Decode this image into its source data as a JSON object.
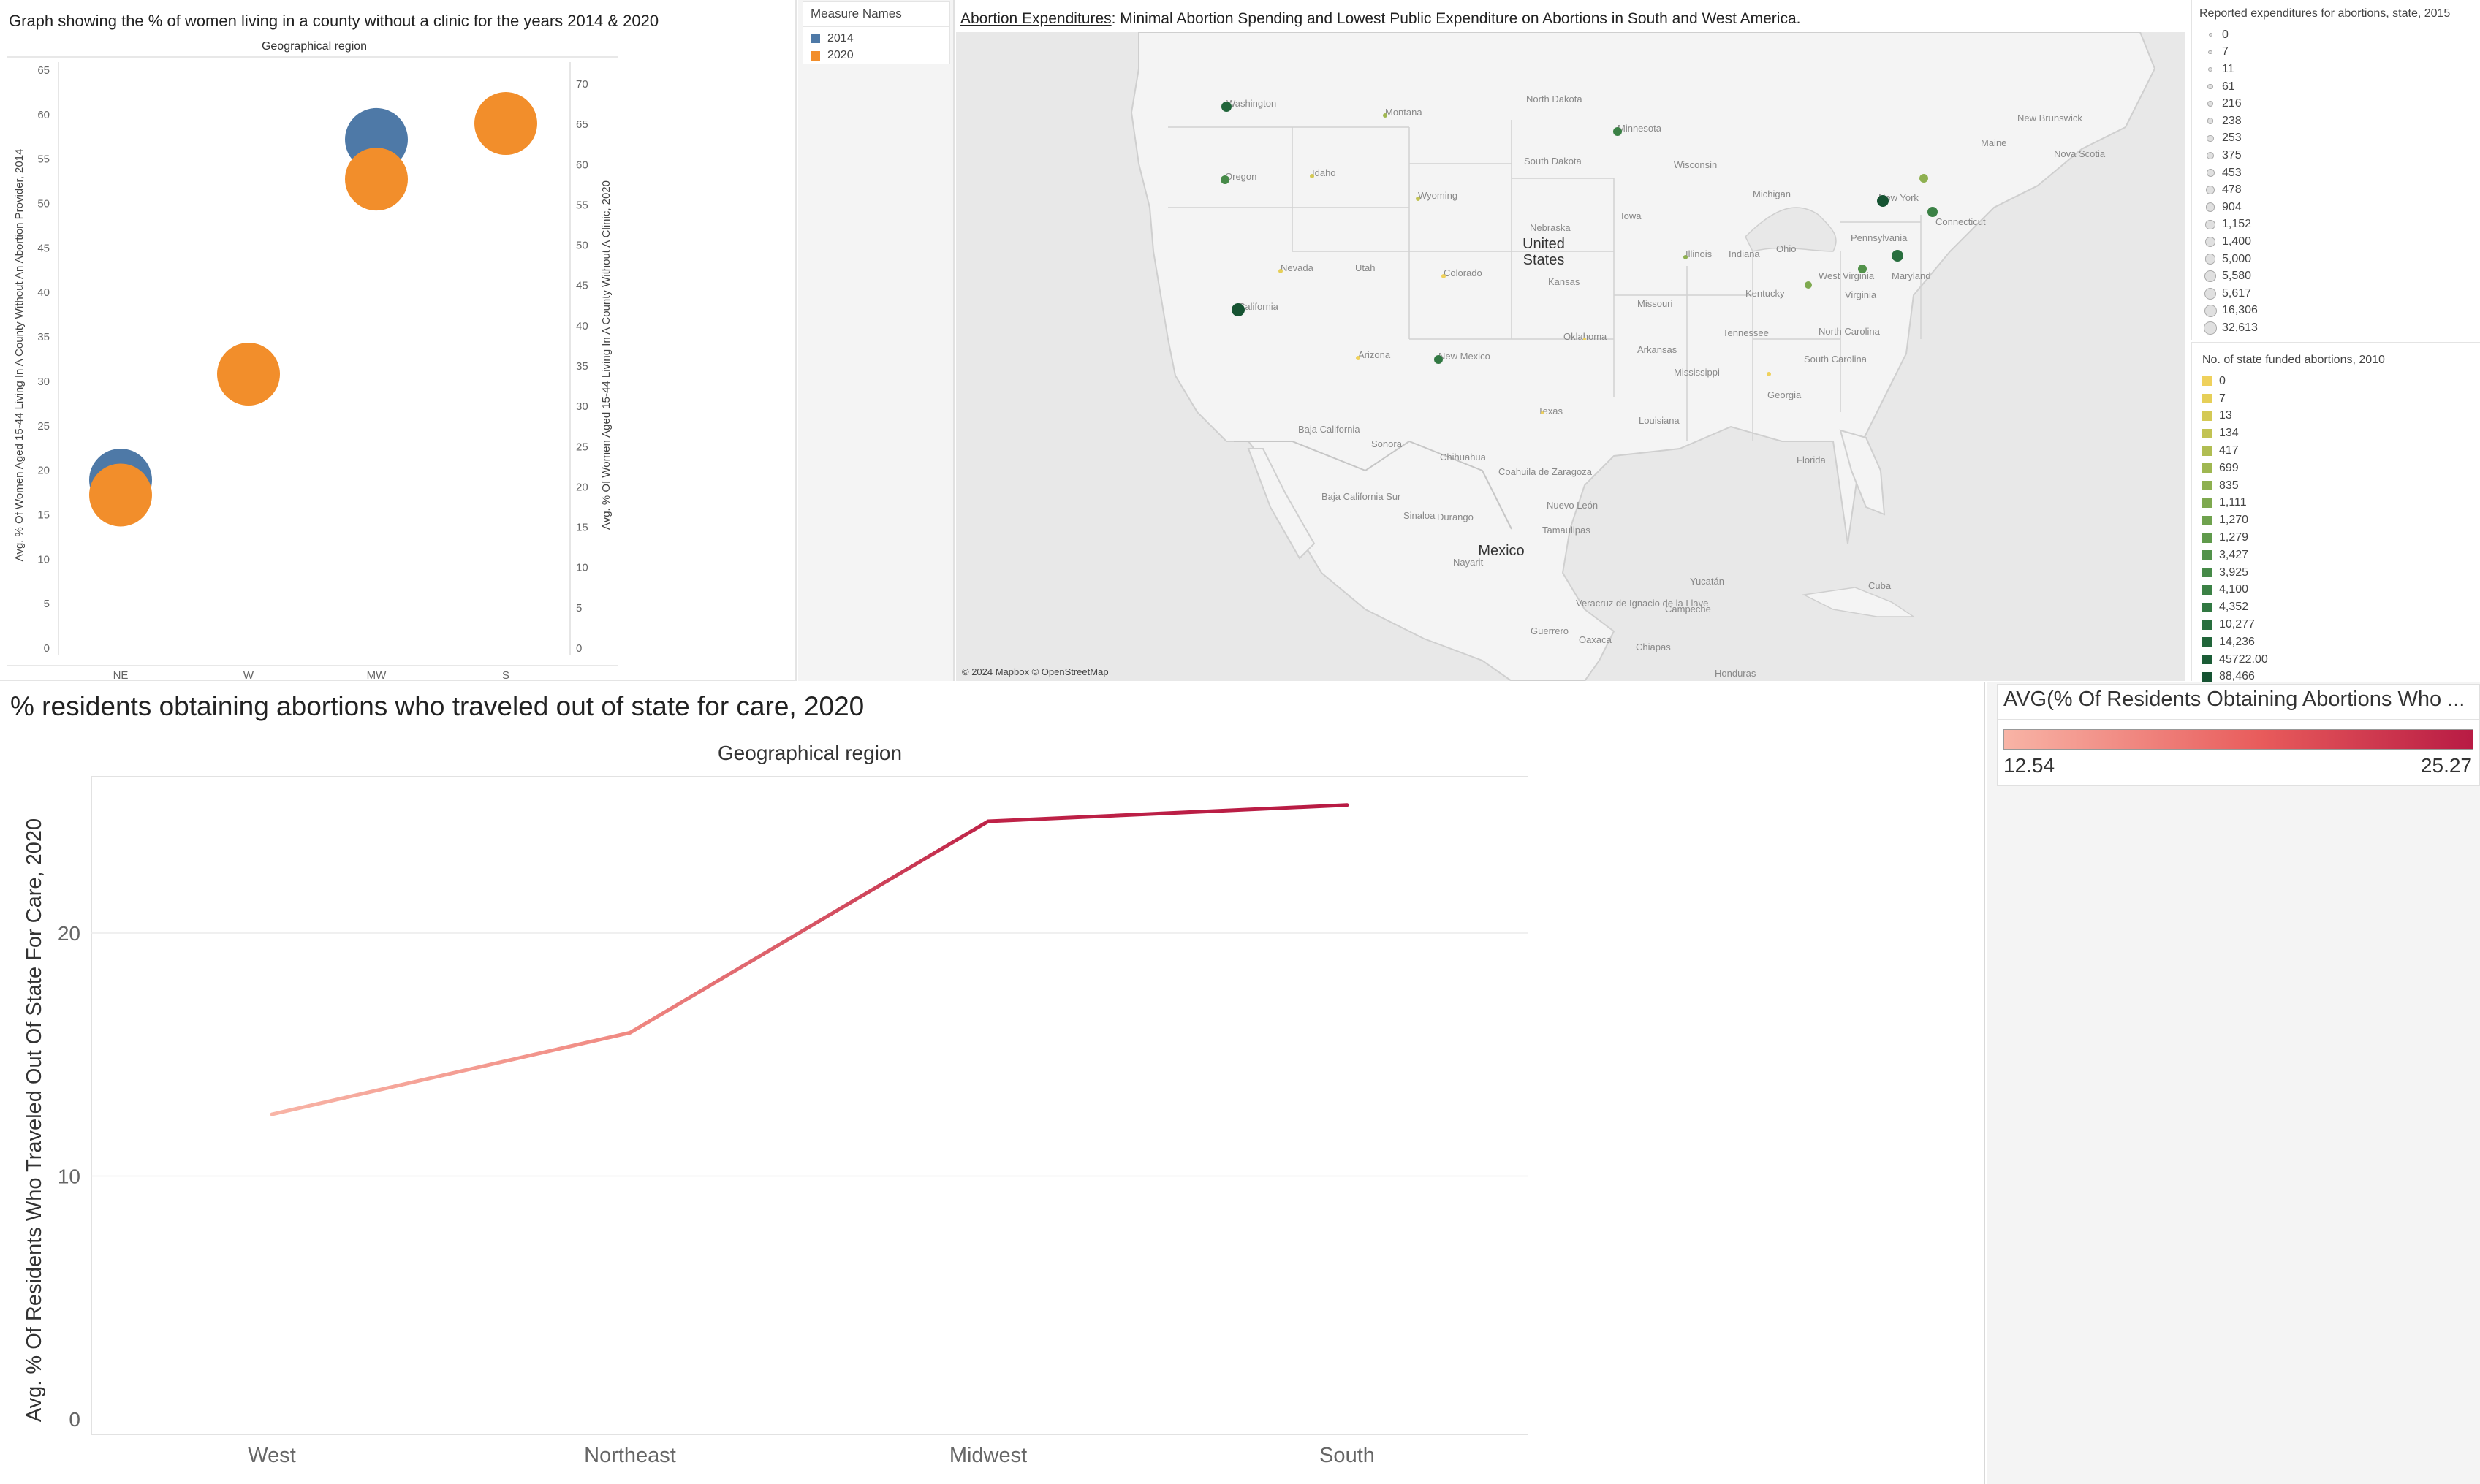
{
  "bubble_panel": {
    "title": "Graph showing the % of women living in a county without a clinic for the years 2014 & 2020",
    "header": "Geographical region",
    "y_left_label": "Avg. % Of Women Aged 15-44 Living In A County Without An Abortion Provider, 2014",
    "y_right_label": "Avg. % Of Women Aged 15-44 Living In A County Without A Clinic, 2020"
  },
  "measure_legend": {
    "title": "Measure Names",
    "items": [
      {
        "label": "2014",
        "color": "#4e79a7"
      },
      {
        "label": "2020",
        "color": "#f28e2b"
      }
    ]
  },
  "map_panel": {
    "title_link": "Abortion Expenditures",
    "title_rest": ": Minimal Abortion Spending and Lowest Public Expenditure on Abortions in South and West America.",
    "attribution": "© 2024 Mapbox © OpenStreetMap",
    "labels": [
      {
        "text": "United",
        "cls": "big"
      },
      {
        "text": "States",
        "cls": "big"
      },
      {
        "text": "Mexico",
        "cls": "big"
      },
      {
        "text": "North Dakota"
      },
      {
        "text": "Minnesota"
      },
      {
        "text": "South Dakota"
      },
      {
        "text": "Wisconsin"
      },
      {
        "text": "Nebraska"
      },
      {
        "text": "Iowa"
      },
      {
        "text": "Michigan"
      },
      {
        "text": "Illinois"
      },
      {
        "text": "Indiana"
      },
      {
        "text": "Ohio"
      },
      {
        "text": "Pennsylvania"
      },
      {
        "text": "New York"
      },
      {
        "text": "Maine"
      },
      {
        "text": "Nova Scotia"
      },
      {
        "text": "New Brunswick"
      },
      {
        "text": "Washington"
      },
      {
        "text": "Montana"
      },
      {
        "text": "Idaho"
      },
      {
        "text": "Oregon"
      },
      {
        "text": "Wyoming"
      },
      {
        "text": "Nevada"
      },
      {
        "text": "Utah"
      },
      {
        "text": "Colorado"
      },
      {
        "text": "Kansas"
      },
      {
        "text": "Missouri"
      },
      {
        "text": "Kentucky"
      },
      {
        "text": "Virginia"
      },
      {
        "text": "California"
      },
      {
        "text": "Arizona"
      },
      {
        "text": "New Mexico"
      },
      {
        "text": "Oklahoma"
      },
      {
        "text": "Arkansas"
      },
      {
        "text": "Tennessee"
      },
      {
        "text": "North Carolina"
      },
      {
        "text": "South Carolina"
      },
      {
        "text": "Georgia"
      },
      {
        "text": "Mississippi"
      },
      {
        "text": "Texas"
      },
      {
        "text": "Louisiana"
      },
      {
        "text": "Florida"
      },
      {
        "text": "Baja California"
      },
      {
        "text": "Sonora"
      },
      {
        "text": "Chihuahua"
      },
      {
        "text": "Coahuila de Zaragoza"
      },
      {
        "text": "Nuevo León"
      },
      {
        "text": "Tamaulipas"
      },
      {
        "text": "Baja California Sur"
      },
      {
        "text": "Sinaloa"
      },
      {
        "text": "Durango"
      },
      {
        "text": "Nayarit"
      },
      {
        "text": "Veracruz de Ignacio de la Llave"
      },
      {
        "text": "Campeche"
      },
      {
        "text": "Yucatán"
      },
      {
        "text": "Guerrero"
      },
      {
        "text": "Oaxaca"
      },
      {
        "text": "Chiapas"
      },
      {
        "text": "Honduras"
      },
      {
        "text": "Cuba"
      },
      {
        "text": "West Virginia"
      },
      {
        "text": "Maryland"
      },
      {
        "text": "Connecticut"
      }
    ]
  },
  "expend_legend": {
    "title": "Reported expenditures for abortions, state, 2015",
    "items": [
      "0",
      "7",
      "11",
      "61",
      "216",
      "238",
      "253",
      "375",
      "453",
      "478",
      "904",
      "1,152",
      "1,400",
      "5,000",
      "5,580",
      "5,617",
      "16,306",
      "32,613"
    ]
  },
  "funded_legend": {
    "title": "No. of state funded abortions, 2010",
    "items": [
      {
        "label": "0",
        "color": "#efd15c"
      },
      {
        "label": "7",
        "color": "#e6cf58"
      },
      {
        "label": "13",
        "color": "#d4c955"
      },
      {
        "label": "134",
        "color": "#c2c353"
      },
      {
        "label": "417",
        "color": "#b0bd52"
      },
      {
        "label": "699",
        "color": "#9fb751"
      },
      {
        "label": "835",
        "color": "#8eb050"
      },
      {
        "label": "1,111",
        "color": "#7ea94f"
      },
      {
        "label": "1,270",
        "color": "#6fa24e"
      },
      {
        "label": "1,279",
        "color": "#609a4c"
      },
      {
        "label": "3,427",
        "color": "#52924a"
      },
      {
        "label": "3,925",
        "color": "#468a48"
      },
      {
        "label": "4,100",
        "color": "#3b8145"
      },
      {
        "label": "4,352",
        "color": "#317842"
      },
      {
        "label": "10,277",
        "color": "#286e3e"
      },
      {
        "label": "14,236",
        "color": "#21653a"
      },
      {
        "label": "45722.00",
        "color": "#1b5c36"
      },
      {
        "label": "88,466",
        "color": "#165332"
      }
    ]
  },
  "line_panel": {
    "title": "% residents obtaining abortions who traveled out of state for care, 2020",
    "header": "Geographical region",
    "ylabel": "Avg. % Of Residents Who Traveled Out Of State For Care, 2020"
  },
  "color_legend": {
    "title": "AVG(% Of Residents Obtaining Abortions Who ...",
    "min": "12.54",
    "max": "25.27",
    "color_low": "#f8b4a6",
    "color_high": "#b81b44"
  },
  "chart_data": [
    {
      "type": "scatter",
      "title": "Graph showing the % of women living in a county without a clinic for the years 2014 & 2020",
      "xlabel": "Geographical region",
      "categories": [
        "NE",
        "W",
        "MW",
        "S"
      ],
      "y_left_ticks": [
        "0",
        "5",
        "10",
        "15",
        "20",
        "25",
        "30",
        "35",
        "40",
        "45",
        "50",
        "55",
        "60",
        "65"
      ],
      "y_right_ticks": [
        "0",
        "5",
        "10",
        "15",
        "20",
        "25",
        "30",
        "35",
        "40",
        "45",
        "50",
        "55",
        "60",
        "65",
        "70"
      ],
      "ylim_left": [
        0,
        65
      ],
      "ylim_right": [
        0,
        72
      ],
      "series": [
        {
          "name": "2014",
          "axis": "left",
          "values": [
            18.9,
            null,
            57.2,
            null
          ]
        },
        {
          "name": "2020",
          "axis": "right",
          "values": [
            19.0,
            34.0,
            58.2,
            65.1
          ]
        }
      ]
    },
    {
      "type": "line",
      "title": "% residents obtaining abortions who traveled out of state for care, 2020",
      "xlabel": "Geographical region",
      "ylabel": "Avg. % Of Residents Who Traveled Out Of State For Care, 2020",
      "categories": [
        "West",
        "Northeast",
        "Midwest",
        "South"
      ],
      "values": [
        12.54,
        15.9,
        24.6,
        25.27
      ],
      "y_ticks": [
        "0",
        "10",
        "20"
      ],
      "ylim": [
        0,
        26
      ],
      "grid": true
    }
  ]
}
